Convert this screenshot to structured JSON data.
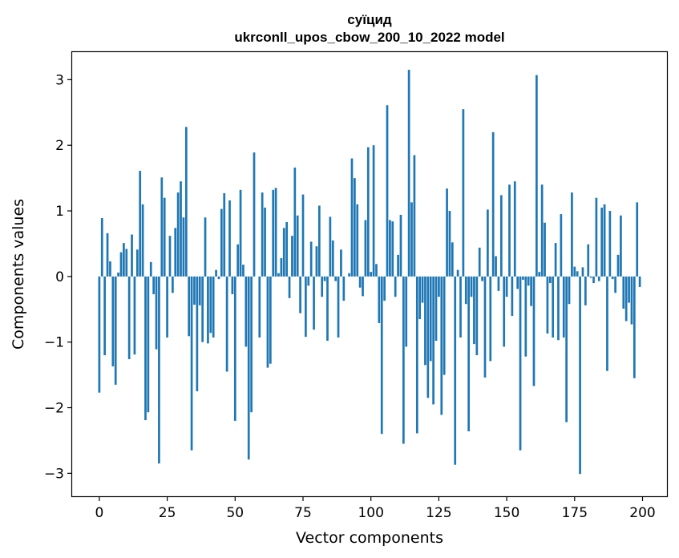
{
  "chart_data": {
    "type": "bar",
    "title": "суїцид",
    "subtitle": "ukrconll_upos_cbow_200_10_2022 model",
    "xlabel": "Vector components",
    "ylabel": "Components values",
    "xlim": [
      -10,
      209
    ],
    "ylim": [
      -3.35,
      3.42
    ],
    "xticks": [
      0,
      25,
      50,
      75,
      100,
      125,
      150,
      175,
      200
    ],
    "yticks": [
      -3,
      -2,
      -1,
      0,
      1,
      2,
      3
    ],
    "ytick_labels": [
      "−3",
      "−2",
      "−1",
      "0",
      "1",
      "2",
      "3"
    ],
    "bar_color": "#1f77b4",
    "series": [
      {
        "name": "суїцид",
        "values": [
          -1.77,
          0.89,
          -1.2,
          0.66,
          0.23,
          -1.37,
          -1.65,
          0.06,
          0.37,
          0.51,
          0.42,
          -1.26,
          0.64,
          -1.19,
          0.41,
          1.61,
          1.1,
          -2.19,
          -2.07,
          0.22,
          -0.27,
          -1.11,
          -2.85,
          1.51,
          1.2,
          -0.93,
          0.62,
          -0.25,
          0.74,
          1.28,
          1.45,
          0.9,
          2.28,
          -0.91,
          -2.65,
          -0.43,
          -1.75,
          -0.44,
          -1.0,
          0.9,
          -1.02,
          -0.86,
          -0.93,
          0.1,
          -0.04,
          1.03,
          1.27,
          -1.45,
          1.16,
          -0.27,
          -2.2,
          0.49,
          1.32,
          0.18,
          -1.07,
          -2.79,
          -2.07,
          1.89,
          0.0,
          -0.93,
          1.28,
          1.05,
          -1.39,
          -1.33,
          1.32,
          1.35,
          0.05,
          0.28,
          0.74,
          0.83,
          -0.33,
          0.62,
          1.66,
          0.93,
          -0.56,
          1.25,
          -0.92,
          -0.14,
          0.53,
          -0.81,
          0.46,
          1.08,
          -0.31,
          -0.07,
          -0.98,
          0.91,
          0.55,
          -0.07,
          -0.93,
          0.41,
          -0.37,
          0.0,
          0.05,
          1.8,
          1.5,
          1.1,
          -0.17,
          -0.3,
          0.86,
          1.97,
          0.07,
          2.0,
          0.19,
          -0.71,
          -2.4,
          -0.37,
          2.61,
          0.86,
          0.84,
          -0.31,
          0.33,
          0.94,
          -2.55,
          -1.07,
          3.15,
          1.13,
          1.85,
          -2.39,
          -0.65,
          -0.4,
          -1.35,
          -1.85,
          -1.29,
          -1.95,
          -0.98,
          -0.31,
          -2.11,
          -1.5,
          1.34,
          1.0,
          0.52,
          -2.87,
          0.1,
          -0.93,
          2.55,
          -0.42,
          -2.36,
          -0.31,
          -1.03,
          -1.2,
          0.44,
          -0.07,
          -1.54,
          1.02,
          -1.29,
          2.2,
          0.31,
          -0.22,
          1.24,
          -1.07,
          -0.31,
          1.4,
          -0.6,
          1.45,
          -0.19,
          -2.65,
          -0.05,
          -1.22,
          -0.14,
          -0.45,
          -1.67,
          3.07,
          0.07,
          1.4,
          0.82,
          -0.87,
          -0.1,
          -0.93,
          0.51,
          -0.97,
          0.95,
          -0.93,
          -2.22,
          -0.42,
          1.28,
          0.15,
          0.08,
          -3.01,
          0.14,
          -0.44,
          0.49,
          -0.02,
          -0.1,
          1.2,
          -0.07,
          1.05,
          1.1,
          -1.44,
          1.0,
          -0.04,
          -0.25,
          0.33,
          0.93,
          -0.49,
          -0.68,
          -0.4,
          -0.73,
          -1.55,
          1.13,
          -0.16
        ]
      }
    ]
  }
}
